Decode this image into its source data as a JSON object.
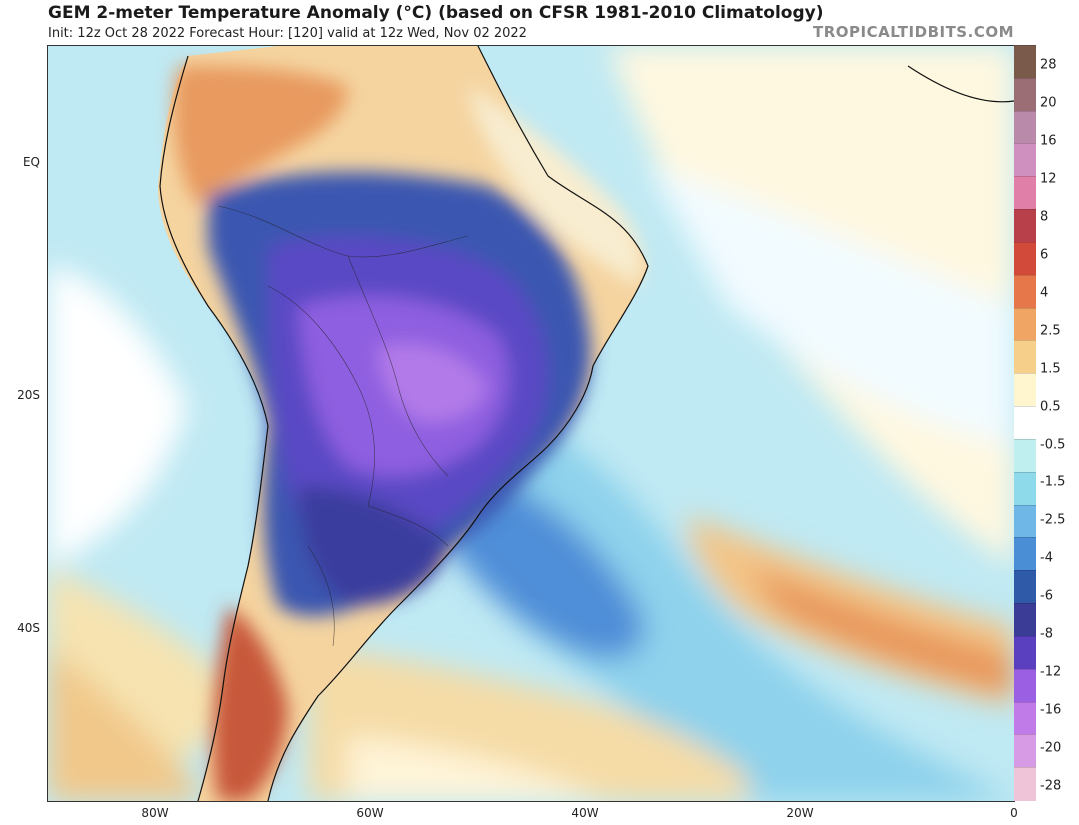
{
  "header": {
    "title": "GEM 2-meter Temperature Anomaly (°C) (based on CFSR 1981-2010 Climatology)",
    "subtitle": "Init: 12z Oct 28 2022   Forecast Hour: [120]   valid at 12z Wed, Nov 02 2022",
    "brand": "TROPICALTIDBITS.COM"
  },
  "map": {
    "lat_labels": [
      "EQ",
      "20S",
      "40S"
    ],
    "lon_labels": [
      "80W",
      "60W",
      "40W",
      "20W",
      "0"
    ]
  },
  "colorbar": {
    "labels": [
      "28",
      "20",
      "16",
      "12",
      "8",
      "6",
      "4",
      "2.5",
      "1.5",
      "0.5",
      "-0.5",
      "-1.5",
      "-2.5",
      "-4",
      "-6",
      "-8",
      "-12",
      "-16",
      "-20",
      "-28"
    ],
    "colors": [
      "#7a5a4a",
      "#9b6e76",
      "#b98aa9",
      "#cf8fbf",
      "#e07fa8",
      "#b8404a",
      "#d24a3a",
      "#e5774a",
      "#f1a565",
      "#f6cf8a",
      "#fff6d0",
      "#ffffff",
      "#bff0ef",
      "#8ed9ea",
      "#6fb7e6",
      "#4a8fd6",
      "#2e5aa8",
      "#3a3c96",
      "#5a3fbf",
      "#9a5fe3",
      "#c07be8",
      "#d79be6",
      "#efc3d8"
    ]
  }
}
